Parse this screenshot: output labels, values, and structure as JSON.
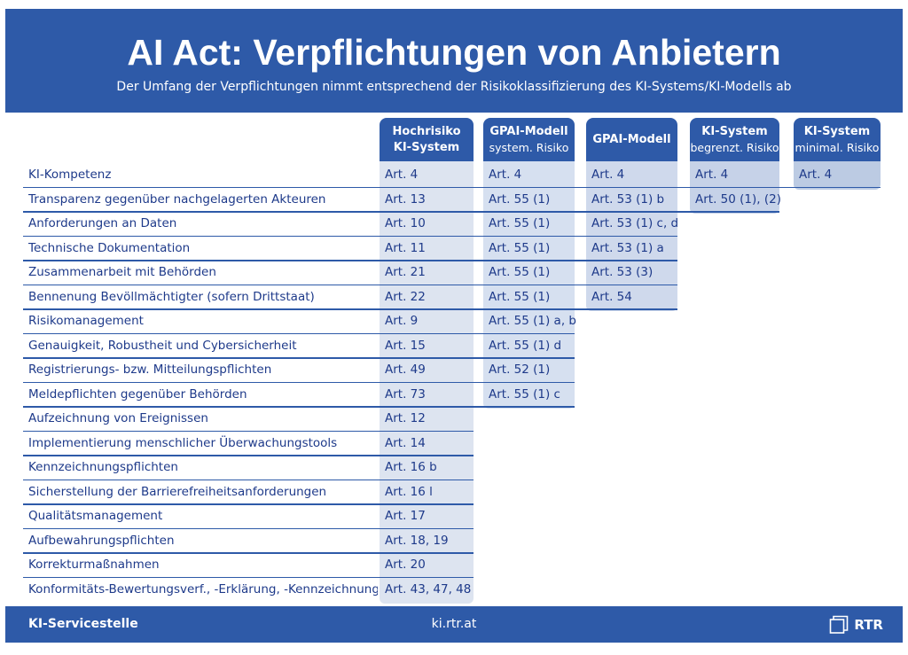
{
  "header": {
    "title": "AI Act: Verpflichtungen von Anbietern",
    "subtitle": "Der Umfang der Verpflichtungen nimmt entsprechend der Risikoklassifizierung des KI-Systems/KI-Modells ab"
  },
  "columns": [
    {
      "line1": "Hochrisiko",
      "line2": "KI-System",
      "line2_bold": true
    },
    {
      "line1": "GPAI-Modell",
      "line2": "system. Risiko",
      "line2_bold": false
    },
    {
      "line1": "GPAI-Modell",
      "line2": "",
      "line2_bold": false
    },
    {
      "line1": "KI-System",
      "line2": "begrenzt. Risiko",
      "line2_bold": false
    },
    {
      "line1": "KI-System",
      "line2": "minimal. Risiko",
      "line2_bold": false
    }
  ],
  "rows": [
    {
      "label": "KI-Kompetenz",
      "cells": [
        "Art. 4",
        "Art. 4",
        "Art. 4",
        "Art. 4",
        "Art. 4"
      ]
    },
    {
      "label": "Transparenz gegenüber nachgelagerten Akteuren",
      "cells": [
        "Art. 13",
        "Art. 55 (1)",
        "Art. 53 (1) b",
        "Art. 50 (1), (2)",
        ""
      ]
    },
    {
      "label": "Anforderungen an Daten",
      "cells": [
        "Art. 10",
        "Art. 55 (1)",
        "Art. 53 (1) c, d",
        "",
        ""
      ]
    },
    {
      "label": "Technische Dokumentation",
      "cells": [
        "Art. 11",
        "Art. 55 (1)",
        "Art. 53 (1) a",
        "",
        ""
      ]
    },
    {
      "label": "Zusammenarbeit mit Behörden",
      "cells": [
        "Art. 21",
        "Art. 55 (1)",
        "Art. 53 (3)",
        "",
        ""
      ]
    },
    {
      "label": "Bennenung Bevöllmächtigter (sofern Drittstaat)",
      "cells": [
        "Art. 22",
        "Art. 55 (1)",
        "Art. 54",
        "",
        ""
      ]
    },
    {
      "label": "Risikomanagement",
      "cells": [
        "Art. 9",
        "Art. 55 (1) a, b",
        "",
        "",
        ""
      ]
    },
    {
      "label": "Genauigkeit, Robustheit und Cybersicherheit",
      "cells": [
        "Art. 15",
        "Art. 55 (1) d",
        "",
        "",
        ""
      ]
    },
    {
      "label": "Registrierungs- bzw. Mitteilungspflichten",
      "cells": [
        "Art. 49",
        "Art. 52 (1)",
        "",
        "",
        ""
      ]
    },
    {
      "label": "Meldepflichten gegenüber Behörden",
      "cells": [
        "Art. 73",
        "Art. 55 (1) c",
        "",
        "",
        ""
      ]
    },
    {
      "label": "Aufzeichnung von Ereignissen",
      "cells": [
        "Art. 12",
        "",
        "",
        "",
        ""
      ]
    },
    {
      "label": "Implementierung menschlicher Überwachungstools",
      "cells": [
        "Art. 14",
        "",
        "",
        "",
        ""
      ]
    },
    {
      "label": "Kennzeichnungspflichten",
      "cells": [
        "Art. 16 b",
        "",
        "",
        "",
        ""
      ]
    },
    {
      "label": "Sicherstellung der Barrierefreiheitsanforderungen",
      "cells": [
        "Art. 16 l",
        "",
        "",
        "",
        ""
      ]
    },
    {
      "label": "Qualitätsmanagement",
      "cells": [
        "Art. 17",
        "",
        "",
        "",
        ""
      ]
    },
    {
      "label": "Aufbewahrungspflichten",
      "cells": [
        "Art. 18, 19",
        "",
        "",
        "",
        ""
      ]
    },
    {
      "label": "Korrekturmaßnahmen",
      "cells": [
        "Art. 20",
        "",
        "",
        "",
        ""
      ]
    },
    {
      "label": "Konformitäts-Bewertungsverf., -Erklärung, -Kennzeichnung",
      "cells": [
        "Art. 43, 47, 48",
        "",
        "",
        "",
        ""
      ]
    }
  ],
  "footer": {
    "left": "KI-Servicestelle",
    "center": "ki.rtr.at",
    "logo_text": "RTR",
    "logo_icon": "rtr-logo-icon"
  },
  "colors": {
    "brand_blue": "#2e5aa8",
    "text_blue": "#1e3a8a",
    "column_shades": [
      "#dde4f0",
      "#d6e0f0",
      "#cfd9ec",
      "#c6d2e8",
      "#bccbe3"
    ]
  }
}
